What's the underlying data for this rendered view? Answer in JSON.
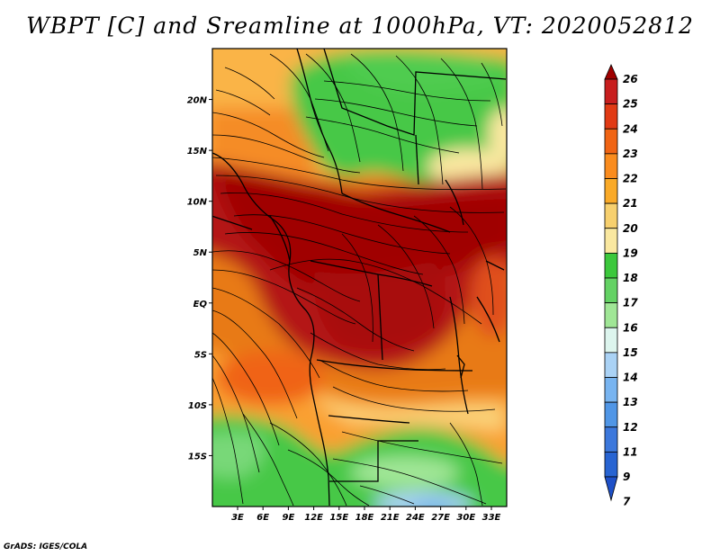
{
  "title": "WBPT [C] and Sreamline at 1000hPa, VT: 2020052812",
  "credit": "GrADS: IGES/COLA",
  "map": {
    "lon_labels": [
      "3E",
      "6E",
      "9E",
      "12E",
      "15E",
      "18E",
      "21E",
      "24E",
      "27E",
      "30E",
      "33E"
    ],
    "lon_values": [
      3,
      6,
      9,
      12,
      15,
      18,
      21,
      24,
      27,
      30,
      33
    ],
    "lat_labels": [
      "20N",
      "15N",
      "10N",
      "5N",
      "EQ",
      "5S",
      "10S",
      "15S"
    ],
    "lat_values": [
      20,
      15,
      10,
      5,
      0,
      -5,
      -10,
      -15
    ],
    "lon_range": [
      0,
      35
    ],
    "lat_range": [
      -20,
      25
    ]
  },
  "colorbar": {
    "levels": [
      "26",
      "25",
      "24",
      "23",
      "22",
      "21",
      "20",
      "19",
      "18",
      "17",
      "16",
      "15",
      "14",
      "13",
      "12",
      "11",
      "9",
      "7"
    ],
    "colors": [
      "#a00000",
      "#c81e1e",
      "#e13a14",
      "#f06414",
      "#fa8c1e",
      "#faaa28",
      "#f7d06e",
      "#fae8a0",
      "#3cc83c",
      "#64d264",
      "#a0e696",
      "#ddf5ee",
      "#aad2f5",
      "#78b4f0",
      "#5096e6",
      "#3c78dc",
      "#2864d2",
      "#1e50c8"
    ]
  }
}
